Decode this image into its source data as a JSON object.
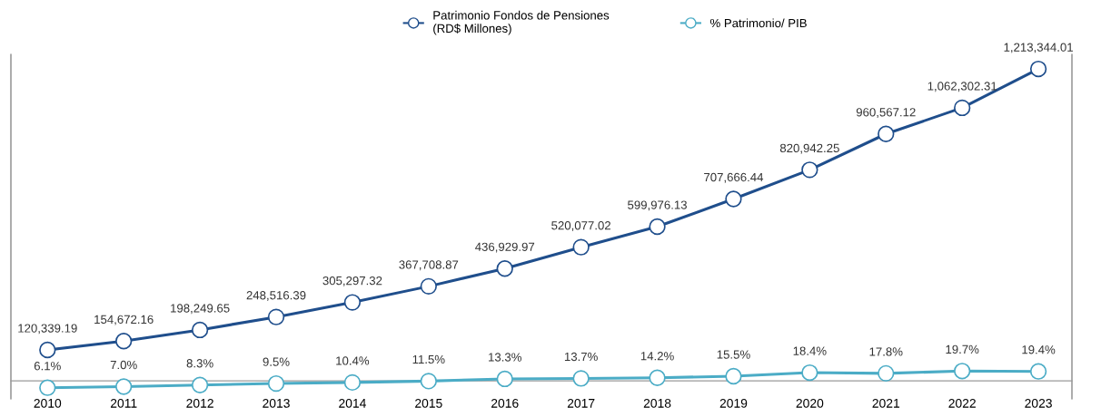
{
  "chart_data": {
    "type": "line",
    "categories": [
      "2010",
      "2011",
      "2012",
      "2013",
      "2014",
      "2015",
      "2016",
      "2017",
      "2018",
      "2019",
      "2020",
      "2021",
      "2022",
      "2023"
    ],
    "series": [
      {
        "name": "Patrimonio Fondos de Pensiones\n(RD$ Millones)",
        "color": "#1f4e8c",
        "value_labels": [
          "120,339.19",
          "154,672.16",
          "198,249.65",
          "248,516.39",
          "305,297.32",
          "367,708.87",
          "436,929.97",
          "520,077.02",
          "599,976.13",
          "707,666.44",
          "820,942.25",
          "960,567.12",
          "1,062,302.31",
          "1,213,344.01"
        ],
        "values": [
          120339.19,
          154672.16,
          198249.65,
          248516.39,
          305297.32,
          367708.87,
          436929.97,
          520077.02,
          599976.13,
          707666.44,
          820942.25,
          960567.12,
          1062302.31,
          1213344.01
        ]
      },
      {
        "name": "% Patrimonio/ PIB",
        "color": "#4bacc6",
        "axis": "y2",
        "value_labels": [
          "6.1%",
          "7.0%",
          "8.3%",
          "9.5%",
          "10.4%",
          "11.5%",
          "13.3%",
          "13.7%",
          "14.2%",
          "15.5%",
          "18.4%",
          "17.8%",
          "19.7%",
          "19.4%"
        ],
        "values": [
          6.1,
          7.0,
          8.3,
          9.5,
          10.4,
          11.5,
          13.3,
          13.7,
          14.2,
          15.5,
          18.4,
          17.8,
          19.7,
          19.4
        ]
      }
    ],
    "ylim": [
      -70000,
      1270000
    ],
    "y2lim": [
      -3,
      278
    ],
    "tick_labels": "x",
    "marker": "circle",
    "line_style": "solid",
    "legend": "top",
    "grid": false
  }
}
